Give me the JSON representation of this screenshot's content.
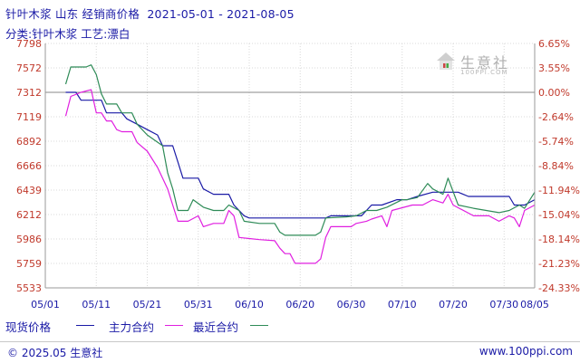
{
  "header": {
    "title": "针叶木浆 山东 经销商价格  2021-05-01 - 2021-08-05",
    "subtitle": "分类:针叶木浆 工艺:漂白"
  },
  "watermark": {
    "name": "生意社",
    "url": "100PPI.COM"
  },
  "legend": {
    "spot": "现货价格",
    "main": "主力合约",
    "recent": "最近合约"
  },
  "footer": {
    "copyright": "© 2025.05 生意社",
    "website": "www.100ppi.com"
  },
  "colors": {
    "spot": "#1a1aa6",
    "main": "#e01fe0",
    "recent": "#2e8b57",
    "left_axis": "#c0392b",
    "right_axis": "#c0392b",
    "x_axis": "#1a1aa6"
  },
  "chart_data": {
    "type": "line",
    "grid": true,
    "x_labels": [
      "05/01",
      "05/11",
      "05/21",
      "05/31",
      "06/10",
      "06/20",
      "06/30",
      "07/10",
      "07/20",
      "07/30",
      "08/05"
    ],
    "y_left_ticks": [
      "7798",
      "7572",
      "7312",
      "7119",
      "6892",
      "6666",
      "6439",
      "6212",
      "5986",
      "5759",
      "5533"
    ],
    "y_right_ticks": [
      "6.65%",
      "3.55%",
      "0.00%",
      "-2.64%",
      "-5.74%",
      "-8.84%",
      "-11.94%",
      "-15.04%",
      "-18.14%",
      "-21.23%",
      "-24.33%"
    ],
    "ylim": [
      5533,
      7798
    ],
    "xlim": [
      "05/01",
      "08/05"
    ],
    "baseline": 7312,
    "series": [
      {
        "name": "现货价格",
        "color_key": "spot",
        "points": [
          [
            "05/05",
            7312
          ],
          [
            "05/07",
            7312
          ],
          [
            "05/08",
            7250
          ],
          [
            "05/12",
            7250
          ],
          [
            "05/13",
            7150
          ],
          [
            "05/16",
            7150
          ],
          [
            "05/17",
            7100
          ],
          [
            "05/19",
            7050
          ],
          [
            "05/21",
            7000
          ],
          [
            "05/23",
            6950
          ],
          [
            "05/24",
            6850
          ],
          [
            "05/26",
            6850
          ],
          [
            "05/27",
            6700
          ],
          [
            "05/28",
            6550
          ],
          [
            "05/31",
            6550
          ],
          [
            "06/01",
            6450
          ],
          [
            "06/03",
            6400
          ],
          [
            "06/06",
            6400
          ],
          [
            "06/07",
            6300
          ],
          [
            "06/08",
            6250
          ],
          [
            "06/09",
            6200
          ],
          [
            "06/10",
            6180
          ],
          [
            "06/16",
            6180
          ],
          [
            "06/25",
            6180
          ],
          [
            "06/26",
            6200
          ],
          [
            "07/02",
            6200
          ],
          [
            "07/03",
            6250
          ],
          [
            "07/04",
            6300
          ],
          [
            "07/06",
            6300
          ],
          [
            "07/09",
            6350
          ],
          [
            "07/11",
            6350
          ],
          [
            "07/13",
            6380
          ],
          [
            "07/16",
            6420
          ],
          [
            "07/21",
            6420
          ],
          [
            "07/23",
            6380
          ],
          [
            "07/31",
            6380
          ],
          [
            "08/01",
            6300
          ],
          [
            "08/03",
            6300
          ],
          [
            "08/05",
            6350
          ]
        ]
      },
      {
        "name": "主力合约",
        "color_key": "main",
        "points": [
          [
            "05/05",
            7125
          ],
          [
            "05/06",
            7280
          ],
          [
            "05/08",
            7312
          ],
          [
            "05/10",
            7340
          ],
          [
            "05/11",
            7150
          ],
          [
            "05/12",
            7150
          ],
          [
            "05/13",
            7080
          ],
          [
            "05/14",
            7080
          ],
          [
            "05/15",
            7000
          ],
          [
            "05/16",
            6980
          ],
          [
            "05/18",
            6980
          ],
          [
            "05/19",
            6880
          ],
          [
            "05/21",
            6800
          ],
          [
            "05/23",
            6650
          ],
          [
            "05/25",
            6450
          ],
          [
            "05/26",
            6300
          ],
          [
            "05/27",
            6150
          ],
          [
            "05/29",
            6150
          ],
          [
            "05/31",
            6200
          ],
          [
            "06/01",
            6100
          ],
          [
            "06/03",
            6130
          ],
          [
            "06/05",
            6130
          ],
          [
            "06/06",
            6250
          ],
          [
            "06/07",
            6200
          ],
          [
            "06/08",
            6000
          ],
          [
            "06/10",
            5990
          ],
          [
            "06/12",
            5980
          ],
          [
            "06/15",
            5970
          ],
          [
            "06/16",
            5900
          ],
          [
            "06/17",
            5850
          ],
          [
            "06/18",
            5850
          ],
          [
            "06/19",
            5760
          ],
          [
            "06/23",
            5760
          ],
          [
            "06/24",
            5800
          ],
          [
            "06/25",
            6000
          ],
          [
            "06/26",
            6100
          ],
          [
            "06/30",
            6100
          ],
          [
            "07/01",
            6130
          ],
          [
            "07/03",
            6150
          ],
          [
            "07/04",
            6170
          ],
          [
            "07/06",
            6200
          ],
          [
            "07/07",
            6100
          ],
          [
            "07/08",
            6250
          ],
          [
            "07/12",
            6300
          ],
          [
            "07/14",
            6300
          ],
          [
            "07/16",
            6350
          ],
          [
            "07/18",
            6320
          ],
          [
            "07/19",
            6400
          ],
          [
            "07/20",
            6300
          ],
          [
            "07/24",
            6200
          ],
          [
            "07/27",
            6200
          ],
          [
            "07/29",
            6150
          ],
          [
            "07/31",
            6200
          ],
          [
            "08/01",
            6180
          ],
          [
            "08/02",
            6100
          ],
          [
            "08/03",
            6250
          ],
          [
            "08/05",
            6300
          ]
        ]
      },
      {
        "name": "最近合约",
        "color_key": "recent",
        "points": [
          [
            "05/05",
            7400
          ],
          [
            "05/06",
            7580
          ],
          [
            "05/09",
            7580
          ],
          [
            "05/10",
            7600
          ],
          [
            "05/11",
            7500
          ],
          [
            "05/12",
            7300
          ],
          [
            "05/13",
            7220
          ],
          [
            "05/15",
            7220
          ],
          [
            "05/16",
            7150
          ],
          [
            "05/18",
            7150
          ],
          [
            "05/19",
            7050
          ],
          [
            "05/21",
            6950
          ],
          [
            "05/24",
            6850
          ],
          [
            "05/25",
            6600
          ],
          [
            "05/26",
            6450
          ],
          [
            "05/27",
            6250
          ],
          [
            "05/29",
            6250
          ],
          [
            "05/30",
            6350
          ],
          [
            "06/01",
            6280
          ],
          [
            "06/03",
            6250
          ],
          [
            "06/05",
            6250
          ],
          [
            "06/06",
            6300
          ],
          [
            "06/08",
            6250
          ],
          [
            "06/09",
            6150
          ],
          [
            "06/12",
            6130
          ],
          [
            "06/15",
            6130
          ],
          [
            "06/16",
            6050
          ],
          [
            "06/17",
            6020
          ],
          [
            "06/23",
            6020
          ],
          [
            "06/24",
            6050
          ],
          [
            "06/25",
            6180
          ],
          [
            "06/29",
            6190
          ],
          [
            "07/01",
            6200
          ],
          [
            "07/03",
            6250
          ],
          [
            "07/05",
            6250
          ],
          [
            "07/07",
            6280
          ],
          [
            "07/10",
            6350
          ],
          [
            "07/11",
            6350
          ],
          [
            "07/13",
            6370
          ],
          [
            "07/15",
            6500
          ],
          [
            "07/16",
            6450
          ],
          [
            "07/18",
            6400
          ],
          [
            "07/19",
            6550
          ],
          [
            "07/21",
            6300
          ],
          [
            "07/24",
            6270
          ],
          [
            "07/29",
            6230
          ],
          [
            "07/31",
            6250
          ],
          [
            "08/02",
            6300
          ],
          [
            "08/03",
            6270
          ],
          [
            "08/05",
            6420
          ]
        ]
      }
    ]
  }
}
